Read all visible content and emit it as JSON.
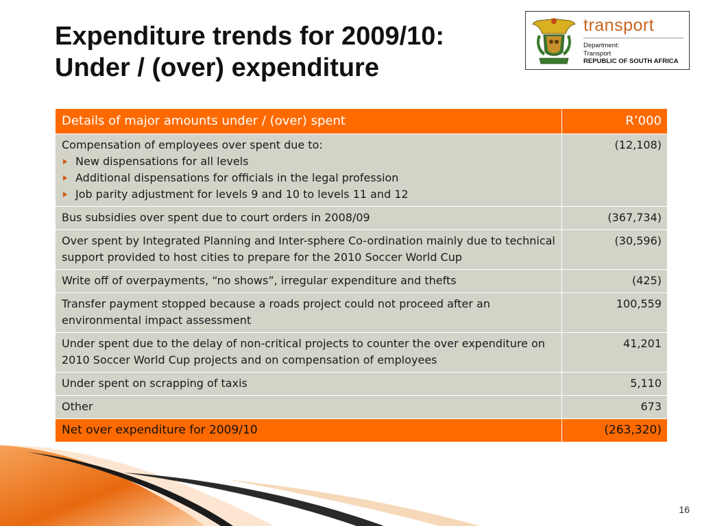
{
  "title": {
    "line1": "Expenditure trends for 2009/10:",
    "line2": "Under / (over) expenditure"
  },
  "logo": {
    "brand": "transport",
    "line1": "Department:",
    "line2": "Transport",
    "line3": "REPUBLIC OF SOUTH AFRICA",
    "crest_icon": "coat-of-arms-icon"
  },
  "table": {
    "headers": [
      "Details of major amounts under / (over) spent",
      "R’000"
    ],
    "rows": [
      {
        "detail": "Compensation of employees over spent due to:",
        "bullets": [
          "New dispensations for all levels",
          "Additional dispensations for officials in the legal profession",
          "Job parity adjustment for levels 9 and 10 to levels 11 and 12"
        ],
        "amount": "(12,108)"
      },
      {
        "detail": "Bus subsidies over spent due to court orders in 2008/09",
        "amount": "(367,734)"
      },
      {
        "detail": "Over spent by Integrated Planning and Inter-sphere Co-ordination mainly due to technical support provided to host cities to prepare for the 2010 Soccer World Cup",
        "amount": "(30,596)"
      },
      {
        "detail": "Write off of overpayments, “no shows”, irregular expenditure and thefts",
        "amount": "(425)"
      },
      {
        "detail": "Transfer payment stopped because a roads project could not proceed after an environmental impact assessment",
        "amount": "100,559"
      },
      {
        "detail": "Under spent due to the delay of non-critical projects to counter the over expenditure on 2010 Soccer World Cup projects and on compensation of employees",
        "amount": "41,201"
      },
      {
        "detail": "Under spent on scrapping of taxis",
        "amount": "5,110"
      },
      {
        "detail": "Other",
        "amount": "673"
      }
    ],
    "total": {
      "detail": "Net over expenditure for 2009/10",
      "amount": "(263,320)"
    }
  },
  "page_number": "16",
  "colors": {
    "accent": "#ff6a00",
    "row_bg": "#d3d3c8",
    "brand": "#c8641e"
  }
}
